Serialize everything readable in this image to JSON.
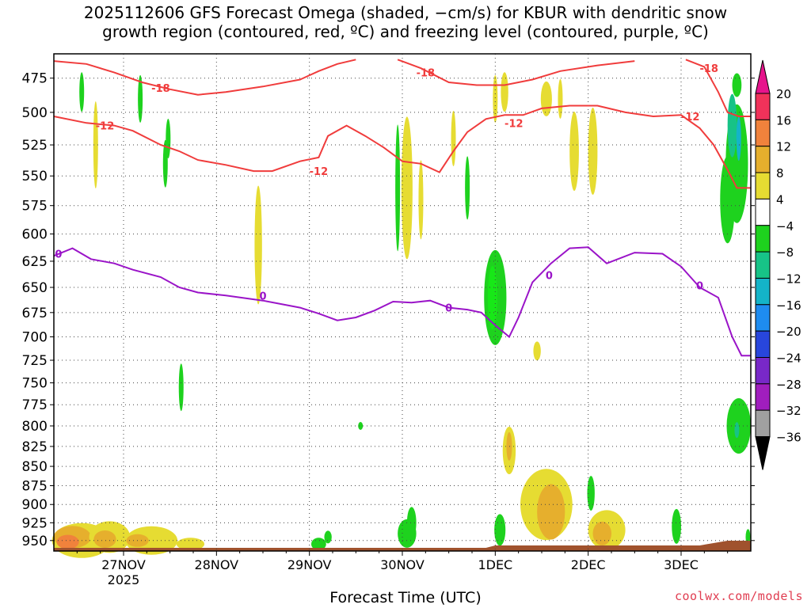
{
  "title_line1": "2025112606 GFS Forecast Omega (shaded, −cm/s) for KBUR with dendritic snow",
  "title_line2": "growth region (contoured, red, ºC) and freezing level (contoured, purple, ºC)",
  "credit": "coolwx.com/models",
  "chart_data": {
    "type": "heatmap",
    "xlabel": "Forecast Time (UTC)",
    "ylabel": "",
    "x_ticks": [
      {
        "label": "27NOV",
        "sub": "2025",
        "day": 1
      },
      {
        "label": "28NOV",
        "sub": "",
        "day": 2
      },
      {
        "label": "29NOV",
        "sub": "",
        "day": 3
      },
      {
        "label": "30NOV",
        "sub": "",
        "day": 4
      },
      {
        "label": "1DEC",
        "sub": "",
        "day": 5
      },
      {
        "label": "2DEC",
        "sub": "",
        "day": 6
      },
      {
        "label": "3DEC",
        "sub": "",
        "day": 7
      }
    ],
    "xlim_days": [
      0.25,
      7.75
    ],
    "y_levels": [
      475,
      500,
      525,
      550,
      575,
      600,
      625,
      650,
      675,
      700,
      725,
      750,
      775,
      800,
      825,
      850,
      875,
      900,
      925,
      950
    ],
    "ylim_hpa": [
      458,
      965
    ],
    "y_scale": "log-pressure",
    "grid": "dotted",
    "colorbar": {
      "labels": [
        "20",
        "16",
        "12",
        "8",
        "4",
        "−4",
        "−8",
        "−12",
        "−16",
        "−20",
        "−24",
        "−28",
        "−32",
        "−36"
      ],
      "colors": [
        "#f0325a",
        "#f0823c",
        "#e6af2d",
        "#e6dc32",
        "#ffffff",
        "#1ed21e",
        "#17c387",
        "#14b4c8",
        "#1e8cf0",
        "#2846dc",
        "#7828c8",
        "#a01ebe",
        "#a0a0a0"
      ],
      "top_arrow_color": "#e6148c",
      "bottom_arrow_color": "#000000"
    },
    "contour_labels": {
      "red_minus18": "-18",
      "red_minus12": "-12",
      "purple_zero": "0"
    },
    "series": [
      {
        "name": "-18",
        "color": "#f03c3c",
        "points": [
          [
            0.25,
            463
          ],
          [
            0.6,
            465
          ],
          [
            0.9,
            471
          ],
          [
            1.2,
            478
          ],
          [
            1.5,
            483
          ],
          [
            1.8,
            487
          ],
          [
            2.1,
            485
          ],
          [
            2.5,
            481
          ],
          [
            2.9,
            476
          ],
          [
            3.1,
            470
          ],
          [
            3.3,
            465
          ],
          [
            3.5,
            462
          ]
        ]
      },
      {
        "name": "-18",
        "color": "#f03c3c",
        "points": [
          [
            3.95,
            462
          ],
          [
            4.2,
            468
          ],
          [
            4.5,
            478
          ],
          [
            4.8,
            480
          ],
          [
            5.1,
            480
          ],
          [
            5.4,
            476
          ],
          [
            5.7,
            470
          ],
          [
            6.1,
            466
          ],
          [
            6.5,
            463
          ]
        ]
      },
      {
        "name": "-18",
        "color": "#f03c3c",
        "points": [
          [
            7.05,
            462
          ],
          [
            7.25,
            467
          ],
          [
            7.4,
            485
          ],
          [
            7.5,
            500
          ],
          [
            7.62,
            503
          ],
          [
            7.75,
            503
          ]
        ]
      },
      {
        "name": "-12",
        "color": "#f03c3c",
        "points": [
          [
            0.25,
            503
          ],
          [
            0.6,
            508
          ],
          [
            0.9,
            510
          ],
          [
            1.1,
            514
          ],
          [
            1.4,
            525
          ],
          [
            1.6,
            530
          ],
          [
            1.8,
            537
          ],
          [
            2.1,
            541
          ],
          [
            2.4,
            546
          ],
          [
            2.6,
            546
          ],
          [
            2.9,
            538
          ],
          [
            3.1,
            535
          ],
          [
            3.2,
            518
          ],
          [
            3.4,
            510
          ],
          [
            3.6,
            518
          ],
          [
            3.8,
            527
          ],
          [
            4.0,
            538
          ],
          [
            4.2,
            540
          ],
          [
            4.4,
            547
          ],
          [
            4.55,
            530
          ],
          [
            4.7,
            515
          ],
          [
            4.9,
            505
          ],
          [
            5.1,
            502
          ],
          [
            5.3,
            502
          ],
          [
            5.5,
            497
          ],
          [
            5.8,
            495
          ],
          [
            6.1,
            495
          ],
          [
            6.4,
            500
          ],
          [
            6.7,
            503
          ],
          [
            7.0,
            502
          ],
          [
            7.2,
            512
          ],
          [
            7.35,
            525
          ],
          [
            7.5,
            545
          ],
          [
            7.6,
            560
          ],
          [
            7.75,
            560
          ]
        ]
      },
      {
        "name": "0",
        "color": "#9a14c8",
        "points": [
          [
            0.25,
            620
          ],
          [
            0.45,
            613
          ],
          [
            0.65,
            623
          ],
          [
            0.9,
            627
          ],
          [
            1.1,
            633
          ],
          [
            1.4,
            640
          ],
          [
            1.6,
            650
          ],
          [
            1.8,
            655
          ],
          [
            2.1,
            658
          ],
          [
            2.5,
            663
          ],
          [
            2.9,
            670
          ],
          [
            3.1,
            676
          ],
          [
            3.3,
            683
          ],
          [
            3.5,
            680
          ],
          [
            3.7,
            673
          ],
          [
            3.9,
            664
          ],
          [
            4.1,
            665
          ],
          [
            4.3,
            663
          ],
          [
            4.5,
            670
          ],
          [
            4.7,
            672
          ],
          [
            4.85,
            675
          ],
          [
            5.0,
            688
          ],
          [
            5.15,
            700
          ],
          [
            5.25,
            680
          ],
          [
            5.4,
            645
          ],
          [
            5.6,
            627
          ],
          [
            5.8,
            613
          ],
          [
            6.0,
            612
          ],
          [
            6.2,
            627
          ],
          [
            6.5,
            617
          ],
          [
            6.8,
            618
          ],
          [
            7.0,
            630
          ],
          [
            7.2,
            650
          ],
          [
            7.4,
            660
          ],
          [
            7.55,
            700
          ],
          [
            7.65,
            720
          ],
          [
            7.75,
            720
          ]
        ]
      }
    ]
  }
}
